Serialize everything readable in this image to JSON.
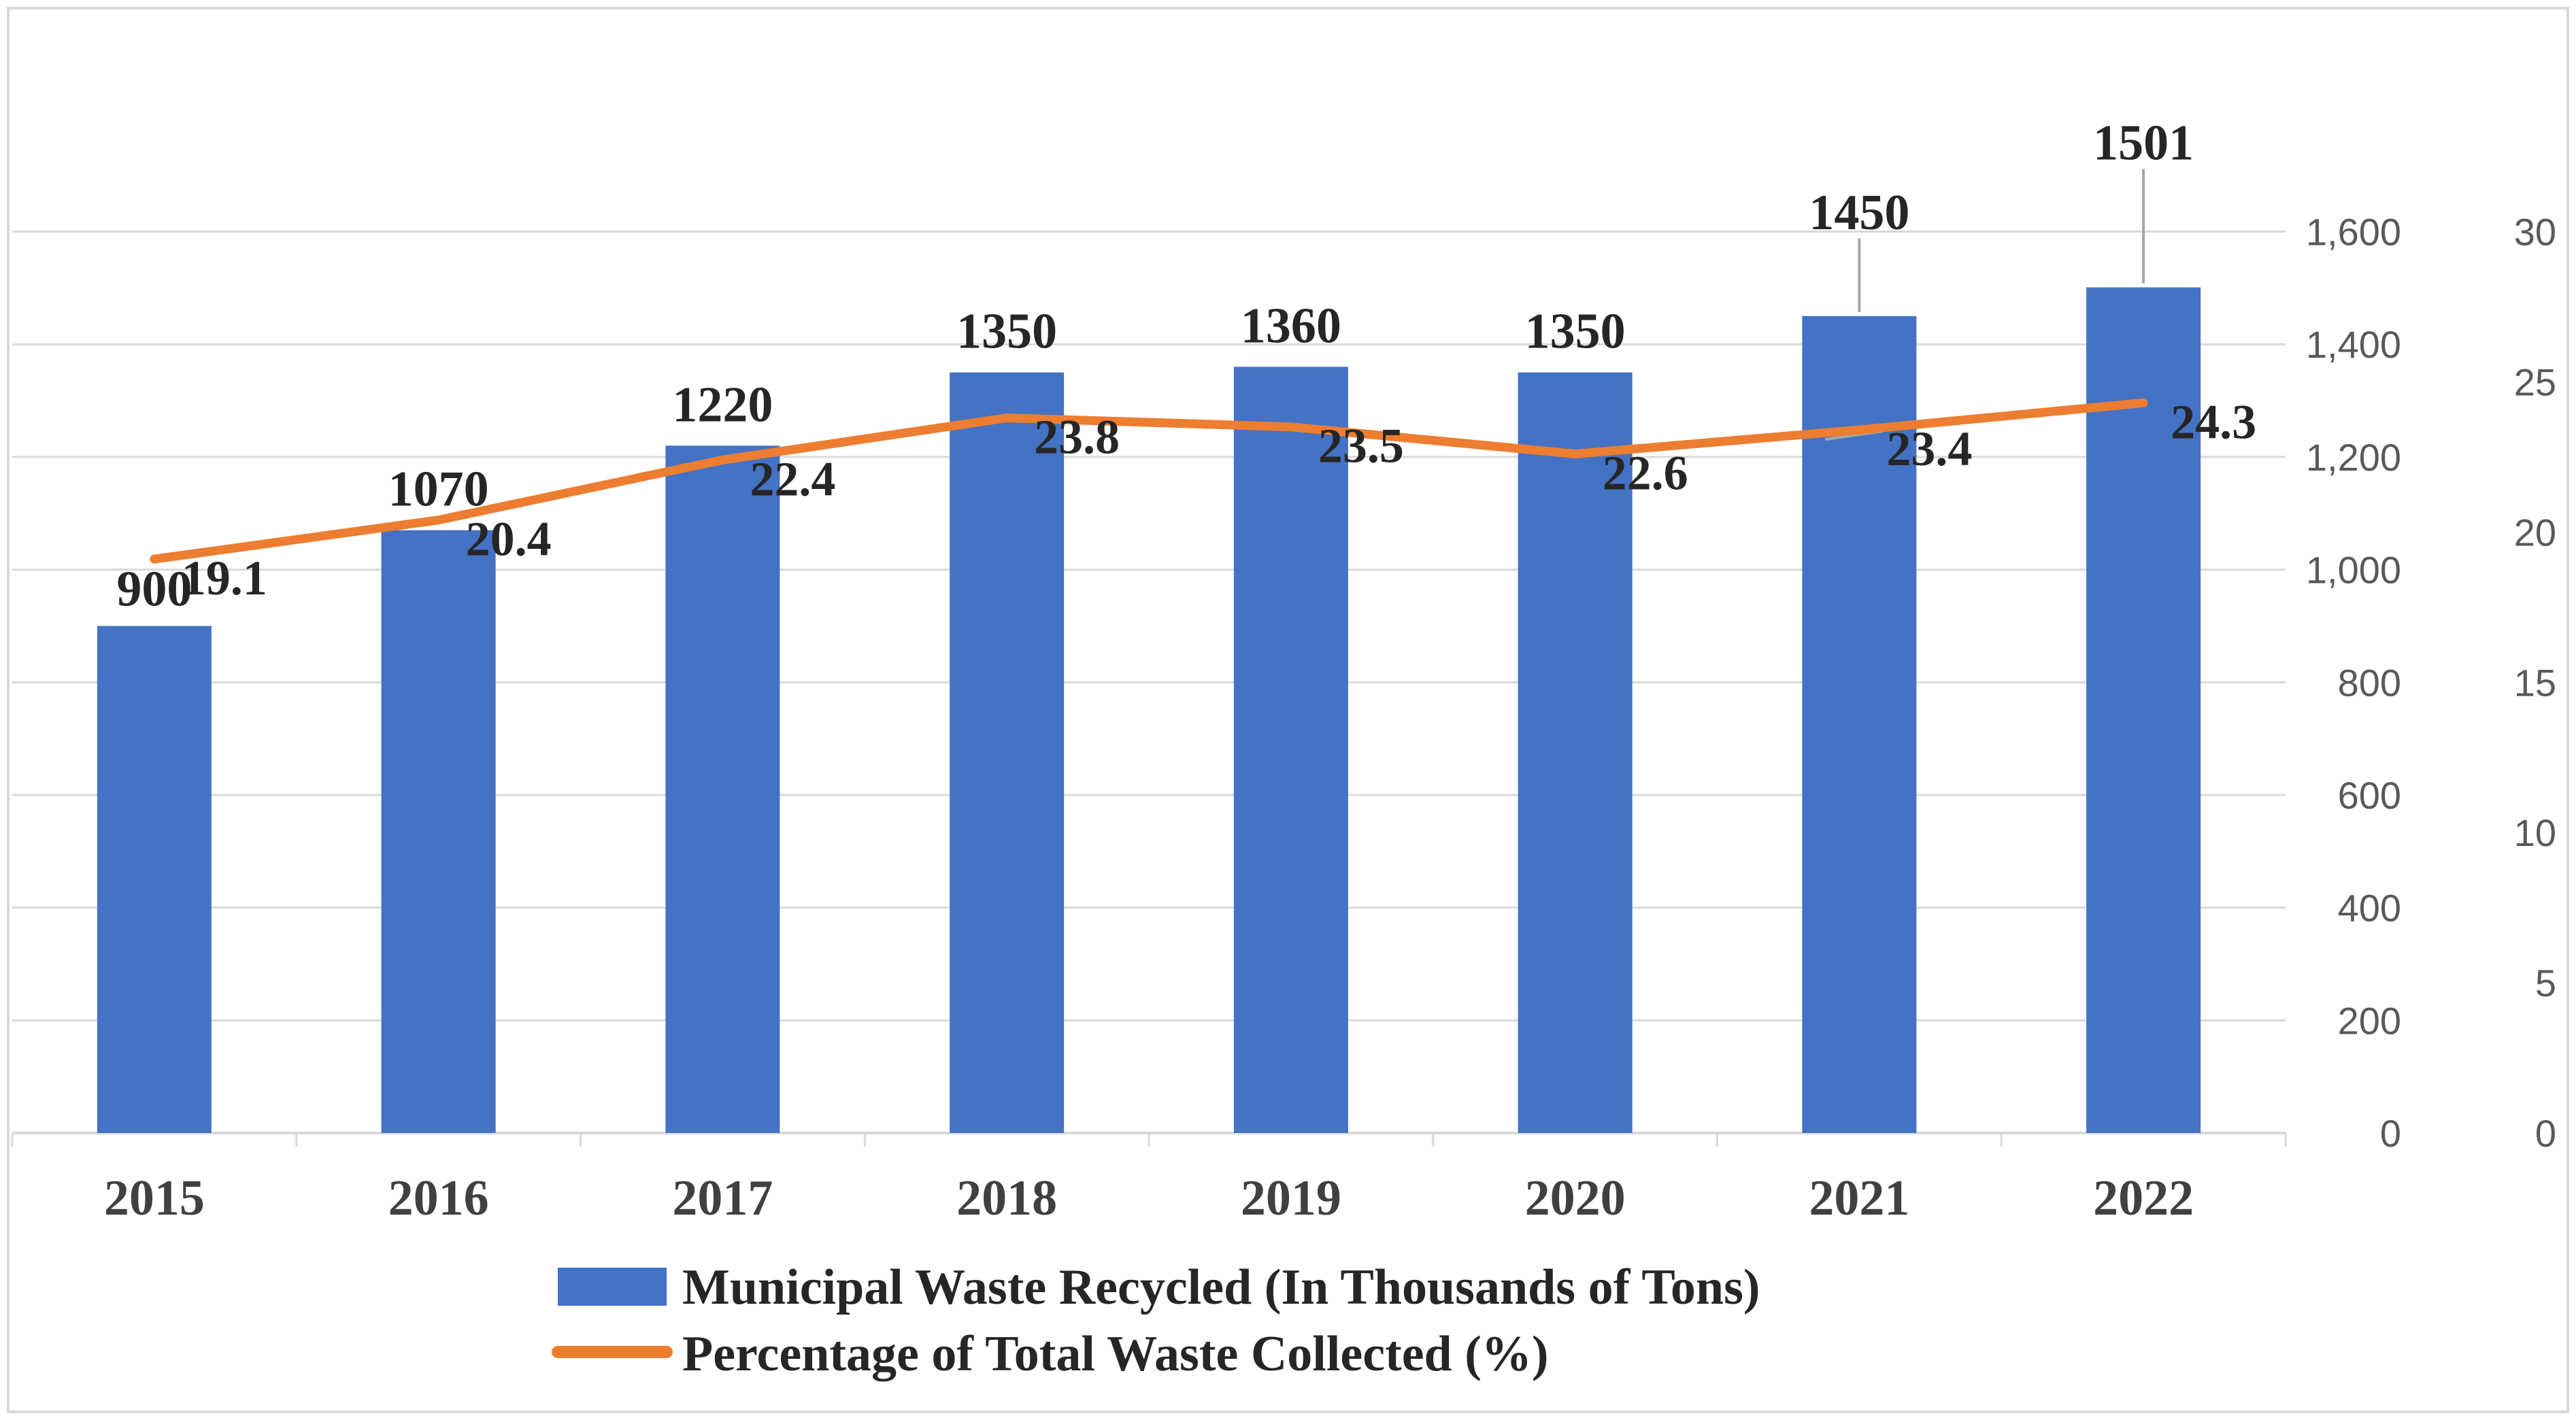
{
  "chart_data": {
    "type": "bar",
    "title": "",
    "xlabel": "",
    "ylabel": "",
    "categories": [
      "2015",
      "2016",
      "2017",
      "2018",
      "2019",
      "2020",
      "2021",
      "2022"
    ],
    "series": [
      {
        "name": "Municipal Waste Recycled (In Thousands of Tons)",
        "type": "bar",
        "axis": "left",
        "values": [
          900,
          1070,
          1220,
          1350,
          1360,
          1350,
          1450,
          1501
        ]
      },
      {
        "name": "Percentage of  Total Waste Collected (%)",
        "type": "line",
        "axis": "right",
        "values": [
          19.1,
          20.4,
          22.4,
          23.8,
          23.5,
          22.6,
          23.4,
          24.3
        ]
      }
    ],
    "y_left": {
      "min": 0,
      "max": 1900,
      "ticks": [
        0,
        200,
        400,
        600,
        800,
        1000,
        1200,
        1400,
        1600
      ],
      "tick_labels": [
        "0",
        "200",
        "400",
        "600",
        "800",
        "1,000",
        "1,200",
        "1,400",
        "1,600"
      ]
    },
    "y_right": {
      "min": 0,
      "max": 35.625,
      "ticks": [
        0,
        5,
        10,
        15,
        20,
        25,
        30
      ],
      "tick_labels": [
        "0",
        "5",
        "10",
        "15",
        "20",
        "25",
        "30"
      ]
    },
    "bar_labels": [
      "900",
      "1070",
      "1220",
      "1350",
      "1360",
      "1350",
      "1450",
      "1501"
    ],
    "line_labels": [
      "19.1",
      "20.4",
      "22.4",
      "23.8",
      "23.5",
      "22.6",
      "23.4",
      "24.3"
    ],
    "grid": true,
    "legend_position": "bottom"
  },
  "colors": {
    "bar": "#4472C4",
    "line": "#ED7D31",
    "grid": "#D9D9D9",
    "border": "#D9D9D9",
    "leader": "#A6A6A6"
  }
}
